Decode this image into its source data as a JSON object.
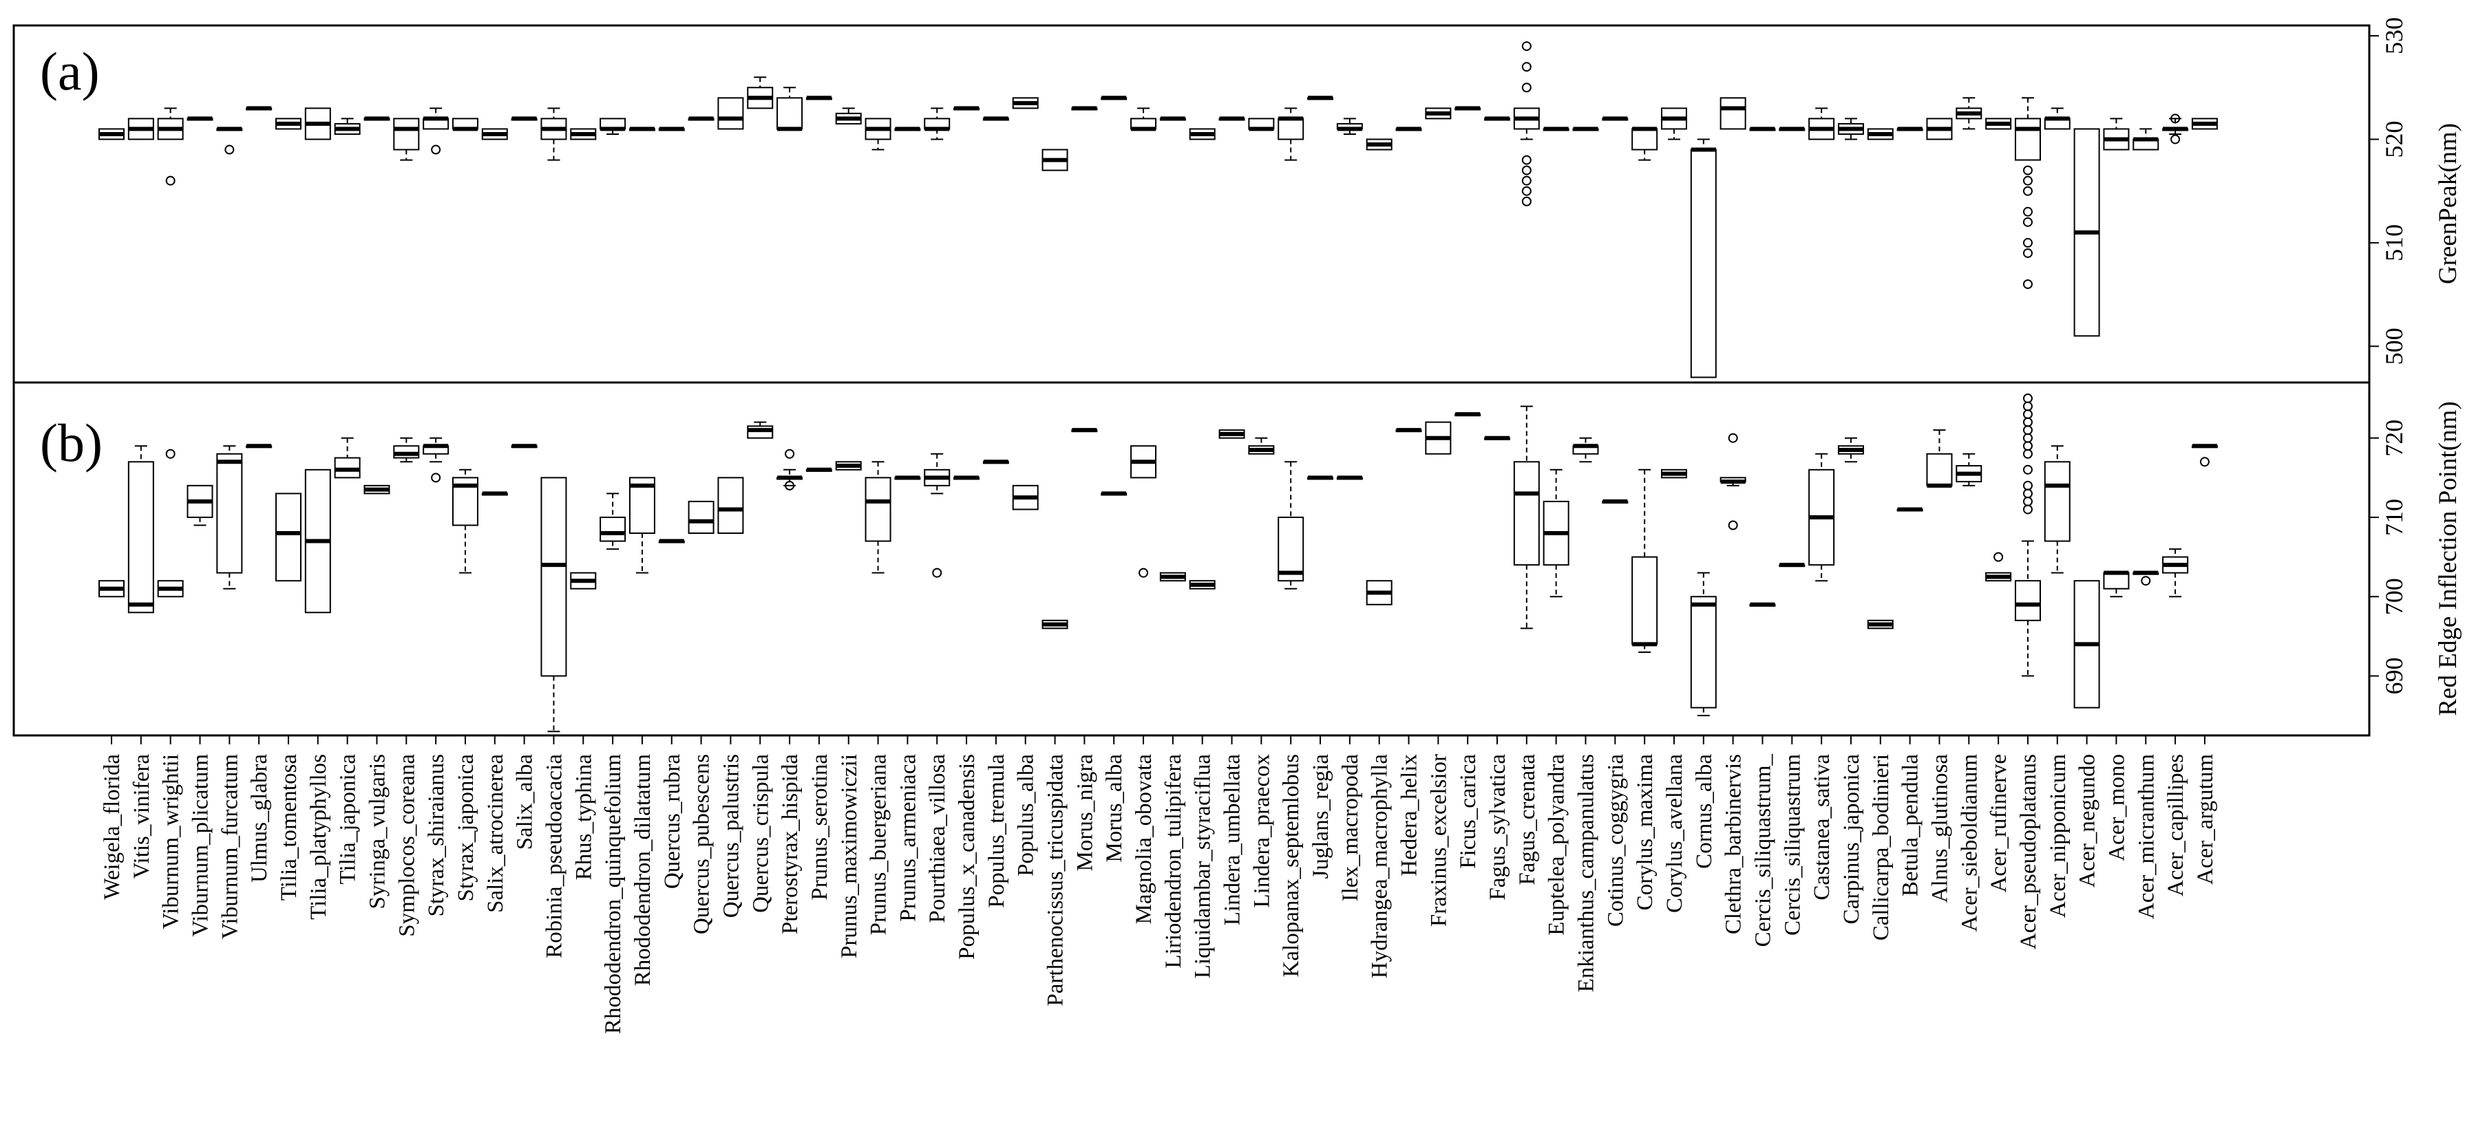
{
  "chart_data": [
    {
      "panel_label": "(a)",
      "type": "box",
      "ylabel": "GreenPeak(nm)",
      "ylim": [
        496.5,
        531
      ],
      "yticks": [
        500,
        510,
        520,
        530
      ],
      "species": [
        "Weigela_florida",
        "Vitis_vinifera",
        "Viburnum_wrightii",
        "Viburnum_plicatum",
        "Viburnum_furcatum",
        "Ulmus_glabra",
        "Tilia_tomentosa",
        "Tilia_platyphyllos",
        "Tilia_japonica",
        "Syringa_vulgaris",
        "Symplocos_coreana",
        "Styrax_shiraianus",
        "Styrax_japonica",
        "Salix_atrocinerea",
        "Salix_alba",
        "Robinia_pseudoacacia",
        "Rhus_typhina",
        "Rhododendron_quinquefolium",
        "Rhododendron_dilatatum",
        "Quercus_rubra",
        "Quercus_pubescens",
        "Quercus_palustris",
        "Quercus_crispula",
        "Pterostyrax_hispida",
        "Prunus_serotina",
        "Prunus_maximowiczii",
        "Prunus_buergeriana",
        "Prunus_armeniaca",
        "Pourthiaea_villosa",
        "Populus_x_canadensis",
        "Populus_tremula",
        "Populus_alba",
        "Parthenocissus_tricuspidata",
        "Morus_nigra",
        "Morus_alba",
        "Magnolia_obovata",
        "Liriodendron_tulipifera",
        "Liquidambar_styraciflua",
        "Lindera_umbellata",
        "Lindera_praecox",
        "Kalopanax_septemlobus",
        "Juglans_regia",
        "Ilex_macropoda",
        "Hydrangea_macrophylla",
        "Hedera_helix",
        "Fraxinus_excelsior",
        "Ficus_carica",
        "Fagus_sylvatica",
        "Fagus_crenata",
        "Euptelea_polyandra",
        "Enkianthus_campanulatus",
        "Cotinus_coggygria",
        "Corylus_maxima",
        "Corylus_avellana",
        "Cornus_alba",
        "Clethra_barbinervis",
        "Cercis_siliquastrum_",
        "Cercis_siliquastrum",
        "Castanea_sativa",
        "Carpinus_japonica",
        "Callicarpa_bodinieri",
        "Betula_pendula",
        "Alnus_glutinosa",
        "Acer_sieboldianum",
        "Acer_rufinerve",
        "Acer_pseudoplatanus",
        "Acer_nipponicum",
        "Acer_negundo",
        "Acer_mono",
        "Acer_micranthum",
        "Acer_capillipes",
        "Acer_argutum"
      ],
      "boxes": [
        [
          520,
          520,
          520.5,
          521,
          521,
          []
        ],
        [
          520,
          520,
          521,
          522,
          522,
          []
        ],
        [
          520,
          520,
          521,
          522,
          523,
          [
            516
          ]
        ],
        [
          522,
          522,
          522,
          522,
          522,
          []
        ],
        [
          521,
          521,
          521,
          521,
          521,
          [
            519
          ]
        ],
        [
          523,
          523,
          523,
          523,
          523,
          []
        ],
        [
          521,
          521,
          521.5,
          522,
          522,
          []
        ],
        [
          520,
          520,
          521.5,
          523,
          523,
          []
        ],
        [
          520.5,
          520.5,
          521,
          521.5,
          522,
          []
        ],
        [
          522,
          522,
          522,
          522,
          522,
          []
        ],
        [
          518,
          519,
          521,
          522,
          522,
          []
        ],
        [
          521,
          521,
          522,
          522,
          523,
          [
            519
          ]
        ],
        [
          521,
          521,
          521,
          522,
          522,
          []
        ],
        [
          520,
          520,
          520.5,
          521,
          521,
          []
        ],
        [
          522,
          522,
          522,
          522,
          522,
          []
        ],
        [
          518,
          520,
          521,
          522,
          523,
          []
        ],
        [
          520,
          520,
          520.5,
          521,
          521,
          []
        ],
        [
          520.5,
          521,
          521,
          522,
          522,
          []
        ],
        [
          521,
          521,
          521,
          521,
          521,
          []
        ],
        [
          521,
          521,
          521,
          521,
          521,
          []
        ],
        [
          522,
          522,
          522,
          522,
          522,
          []
        ],
        [
          521,
          521,
          522,
          524,
          524,
          []
        ],
        [
          523,
          523,
          524,
          525,
          526,
          []
        ],
        [
          521,
          521,
          521,
          524,
          525,
          []
        ],
        [
          524,
          524,
          524,
          524,
          524,
          []
        ],
        [
          521.5,
          521.5,
          522,
          522.5,
          523,
          []
        ],
        [
          519,
          520,
          521,
          522,
          522,
          []
        ],
        [
          521,
          521,
          521,
          521,
          521,
          []
        ],
        [
          520,
          521,
          521,
          522,
          523,
          []
        ],
        [
          523,
          523,
          523,
          523,
          523,
          []
        ],
        [
          522,
          522,
          522,
          522,
          522,
          []
        ],
        [
          523,
          523,
          523.5,
          524,
          524,
          []
        ],
        [
          517,
          517,
          518,
          519,
          519,
          []
        ],
        [
          523,
          523,
          523,
          523,
          523,
          []
        ],
        [
          524,
          524,
          524,
          524,
          524,
          []
        ],
        [
          521,
          521,
          521,
          522,
          523,
          []
        ],
        [
          522,
          522,
          522,
          522,
          522,
          []
        ],
        [
          520,
          520,
          520.5,
          521,
          521,
          []
        ],
        [
          522,
          522,
          522,
          522,
          522,
          []
        ],
        [
          521,
          521,
          521,
          522,
          522,
          []
        ],
        [
          518,
          520,
          522,
          522,
          523,
          []
        ],
        [
          524,
          524,
          524,
          524,
          524,
          []
        ],
        [
          520.5,
          521,
          521,
          521.5,
          522,
          []
        ],
        [
          519,
          519,
          519.5,
          520,
          520,
          []
        ],
        [
          521,
          521,
          521,
          521,
          521,
          []
        ],
        [
          522,
          522,
          522.5,
          523,
          523,
          []
        ],
        [
          523,
          523,
          523,
          523,
          523,
          []
        ],
        [
          522,
          522,
          522,
          522,
          522,
          []
        ],
        [
          520,
          521,
          522,
          523,
          523,
          [
            529,
            527,
            525,
            518,
            517,
            516,
            515,
            514
          ]
        ],
        [
          521,
          521,
          521,
          521,
          521,
          []
        ],
        [
          521,
          521,
          521,
          521,
          521,
          []
        ],
        [
          522,
          522,
          522,
          522,
          522,
          []
        ],
        [
          518,
          519,
          521,
          521,
          521,
          []
        ],
        [
          520,
          521,
          522,
          523,
          523,
          []
        ],
        [
          497,
          497,
          519,
          519,
          520,
          []
        ],
        [
          521,
          521,
          523,
          524,
          524,
          []
        ],
        [
          521,
          521,
          521,
          521,
          521,
          []
        ],
        [
          521,
          521,
          521,
          521,
          521,
          []
        ],
        [
          520,
          520,
          521,
          522,
          523,
          []
        ],
        [
          520,
          520.5,
          521,
          521.5,
          522,
          []
        ],
        [
          520,
          520,
          520.5,
          521,
          521,
          []
        ],
        [
          521,
          521,
          521,
          521,
          521,
          []
        ],
        [
          520,
          520,
          521,
          522,
          522,
          []
        ],
        [
          521,
          522,
          522.5,
          523,
          524,
          []
        ],
        [
          521,
          521,
          521.5,
          522,
          522,
          []
        ],
        [
          518,
          518,
          521,
          522,
          524,
          [
            517,
            516,
            515,
            513,
            512,
            510,
            509,
            506
          ]
        ],
        [
          521,
          521,
          522,
          522,
          523,
          []
        ],
        [
          501,
          501,
          511,
          521,
          521,
          []
        ],
        [
          519,
          519,
          520,
          521,
          522,
          []
        ],
        [
          519,
          519,
          520,
          520,
          521,
          []
        ],
        [
          520.5,
          521,
          521,
          521,
          522,
          [
            520,
            522
          ]
        ],
        [
          521,
          521,
          521.5,
          522,
          522,
          []
        ]
      ]
    },
    {
      "panel_label": "(b)",
      "type": "box",
      "ylabel": "Red Edge Inflection Point(nm)",
      "ylim": [
        682.5,
        727
      ],
      "yticks": [
        690,
        700,
        710,
        720
      ],
      "boxes": [
        [
          700,
          700,
          701,
          702,
          702,
          []
        ],
        [
          698,
          698,
          699,
          717,
          719,
          []
        ],
        [
          700,
          700,
          701,
          702,
          702,
          [
            718
          ]
        ],
        [
          709,
          710,
          712,
          714,
          714,
          []
        ],
        [
          701,
          703,
          717,
          718,
          719,
          []
        ],
        [
          719,
          719,
          719,
          719,
          719,
          []
        ],
        [
          702,
          702,
          708,
          713,
          713,
          []
        ],
        [
          698,
          698,
          707,
          716,
          716,
          []
        ],
        [
          715,
          715,
          716,
          717.5,
          720,
          []
        ],
        [
          713,
          713,
          713.5,
          714,
          714,
          []
        ],
        [
          717,
          717.5,
          718,
          719,
          720,
          []
        ],
        [
          717,
          718,
          719,
          719,
          720,
          [
            715
          ]
        ],
        [
          703,
          709,
          714,
          715,
          716,
          []
        ],
        [
          713,
          713,
          713,
          713,
          713,
          []
        ],
        [
          719,
          719,
          719,
          719,
          719,
          []
        ],
        [
          683,
          690,
          704,
          715,
          715,
          []
        ],
        [
          701,
          701,
          702,
          703,
          703,
          []
        ],
        [
          706,
          707,
          708,
          710,
          713,
          []
        ],
        [
          703,
          708,
          714,
          715,
          715,
          []
        ],
        [
          707,
          707,
          707,
          707,
          707,
          []
        ],
        [
          708,
          708,
          709.5,
          712,
          712,
          []
        ],
        [
          708,
          708,
          711,
          715,
          715,
          []
        ],
        [
          720,
          720,
          721,
          721.5,
          722,
          []
        ],
        [
          714,
          715,
          715,
          715,
          716,
          [
            718,
            714
          ]
        ],
        [
          716,
          716,
          716,
          716,
          716,
          []
        ],
        [
          716,
          716,
          716.5,
          717,
          717,
          []
        ],
        [
          703,
          707,
          712,
          715,
          717,
          []
        ],
        [
          715,
          715,
          715,
          715,
          715,
          []
        ],
        [
          713,
          714,
          715,
          716,
          718,
          [
            703
          ]
        ],
        [
          715,
          715,
          715,
          715,
          715,
          []
        ],
        [
          717,
          717,
          717,
          717,
          717,
          []
        ],
        [
          711,
          711,
          712.5,
          714,
          714,
          []
        ],
        [
          696,
          696,
          696.5,
          697,
          697,
          []
        ],
        [
          721,
          721,
          721,
          721,
          721,
          []
        ],
        [
          713,
          713,
          713,
          713,
          713,
          []
        ],
        [
          715,
          715,
          717,
          719,
          719,
          [
            703
          ]
        ],
        [
          702,
          702,
          702.5,
          703,
          703,
          []
        ],
        [
          701,
          701,
          701.5,
          702,
          702,
          []
        ],
        [
          720,
          720,
          720.5,
          721,
          721,
          []
        ],
        [
          718,
          718,
          718.5,
          719,
          720,
          []
        ],
        [
          701,
          702,
          703,
          710,
          717,
          []
        ],
        [
          715,
          715,
          715,
          715,
          715,
          []
        ],
        [
          715,
          715,
          715,
          715,
          715,
          []
        ],
        [
          699,
          699,
          700.5,
          702,
          702,
          []
        ],
        [
          721,
          721,
          721,
          721,
          721,
          []
        ],
        [
          718,
          718,
          720,
          722,
          722,
          []
        ],
        [
          723,
          723,
          723,
          723,
          723,
          []
        ],
        [
          720,
          720,
          720,
          720,
          720,
          []
        ],
        [
          696,
          704,
          713,
          717,
          724,
          []
        ],
        [
          700,
          704,
          708,
          712,
          716,
          []
        ],
        [
          717,
          718,
          719,
          719,
          720,
          []
        ],
        [
          712,
          712,
          712,
          712,
          712,
          []
        ],
        [
          693,
          694,
          694,
          705,
          716,
          []
        ],
        [
          715,
          715,
          715.5,
          716,
          716,
          []
        ],
        [
          685,
          686,
          699,
          700,
          703,
          []
        ],
        [
          714,
          714.5,
          714.5,
          715,
          715,
          [
            709,
            720
          ]
        ],
        [
          699,
          699,
          699,
          699,
          699,
          []
        ],
        [
          704,
          704,
          704,
          704,
          704,
          []
        ],
        [
          702,
          704,
          710,
          716,
          718,
          []
        ],
        [
          717,
          718,
          718.5,
          719,
          720,
          []
        ],
        [
          696,
          696,
          696.5,
          697,
          697,
          []
        ],
        [
          711,
          711,
          711,
          711,
          711,
          []
        ],
        [
          714,
          714,
          714,
          718,
          721,
          []
        ],
        [
          714,
          714.5,
          715.5,
          716.5,
          718,
          []
        ],
        [
          702,
          702,
          702.5,
          703,
          703,
          [
            705
          ]
        ],
        [
          690,
          697,
          699,
          702,
          707,
          [
            725,
            724,
            723,
            722,
            721,
            720,
            719,
            718,
            716,
            714,
            713,
            712,
            711
          ]
        ],
        [
          703,
          707,
          714,
          717,
          719,
          []
        ],
        [
          686,
          686,
          694,
          702,
          702,
          []
        ],
        [
          700,
          701,
          703,
          703,
          703,
          []
        ],
        [
          703,
          703,
          703,
          703,
          703,
          [
            702
          ]
        ],
        [
          700,
          703,
          704,
          705,
          706,
          []
        ],
        [
          719,
          719,
          719,
          719,
          719,
          [
            717
          ]
        ]
      ]
    }
  ]
}
